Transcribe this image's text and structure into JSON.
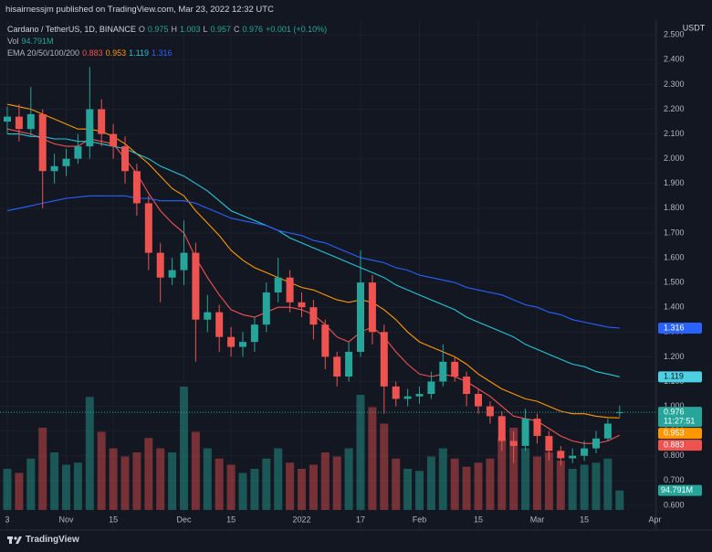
{
  "chart_data": {
    "type": "candlestick",
    "publisher_note": "hisairnessjm published on TradingView.com, Mar 23, 2022 12:32 UTC",
    "title": "Cardano / TetherUS, 1D, BINANCE",
    "ohlc_labels": [
      "O",
      "H",
      "L",
      "C"
    ],
    "change": "+0.001 (+0.10%)",
    "volume_title": "Vol",
    "volume_label": "94.791M",
    "ema_label": "EMA 20/50/100/200",
    "currency": "USDT",
    "countdown": "11:27:51",
    "brand": "TradingView",
    "up_color": "#26a69a",
    "down_color": "#ef5350",
    "grid": true,
    "ylim": [
      0.5,
      2.56
    ],
    "yticks": [
      {
        "value": 0.6,
        "label": "0.600"
      },
      {
        "value": 0.7,
        "label": "0.700"
      },
      {
        "value": 0.8,
        "label": "0.800"
      },
      {
        "value": 0.9,
        "label": "0.900"
      },
      {
        "value": 1.0,
        "label": "1.000"
      },
      {
        "value": 1.1,
        "label": "1.100"
      },
      {
        "value": 1.2,
        "label": "1.200"
      },
      {
        "value": 1.3,
        "label": "1.300"
      },
      {
        "value": 1.4,
        "label": "1.400"
      },
      {
        "value": 1.5,
        "label": "1.500"
      },
      {
        "value": 1.6,
        "label": "1.600"
      },
      {
        "value": 1.7,
        "label": "1.700"
      },
      {
        "value": 1.8,
        "label": "1.800"
      },
      {
        "value": 1.9,
        "label": "1.900"
      },
      {
        "value": 2.0,
        "label": "2.000"
      },
      {
        "value": 2.1,
        "label": "2.100"
      },
      {
        "value": 2.2,
        "label": "2.200"
      },
      {
        "value": 2.3,
        "label": "2.300"
      },
      {
        "value": 2.4,
        "label": "2.400"
      },
      {
        "value": 2.5,
        "label": "2.500"
      }
    ],
    "categories": [
      "3",
      null,
      null,
      null,
      null,
      "Nov",
      null,
      null,
      null,
      "15",
      null,
      null,
      null,
      null,
      null,
      "Dec",
      null,
      null,
      null,
      "15",
      null,
      null,
      null,
      null,
      null,
      "2022",
      null,
      null,
      null,
      null,
      "17",
      null,
      null,
      null,
      null,
      "Feb",
      null,
      null,
      null,
      null,
      "15",
      null,
      null,
      null,
      null,
      "Mar",
      null,
      null,
      null,
      "15",
      null,
      null,
      null,
      null,
      null,
      "Apr"
    ],
    "open": [
      2.15,
      2.17,
      2.12,
      2.18,
      1.95,
      1.97,
      2.0,
      2.05,
      2.2,
      2.1,
      2.05,
      1.95,
      1.82,
      1.62,
      1.52,
      1.55,
      1.62,
      1.35,
      1.38,
      1.28,
      1.24,
      1.26,
      1.33,
      1.46,
      1.52,
      1.42,
      1.4,
      1.33,
      1.2,
      1.12,
      1.22,
      1.5,
      1.3,
      1.08,
      1.03,
      1.04,
      1.05,
      1.1,
      1.18,
      1.12,
      1.05,
      1.0,
      0.96,
      0.86,
      0.84,
      0.95,
      0.88,
      0.82,
      0.79,
      0.8,
      0.83,
      0.87,
      0.975,
      null,
      null,
      null
    ],
    "high": [
      2.21,
      2.22,
      2.29,
      2.2,
      2.02,
      2.04,
      2.1,
      2.37,
      2.24,
      2.14,
      2.09,
      1.98,
      1.85,
      1.66,
      1.6,
      1.75,
      1.66,
      1.45,
      1.41,
      1.32,
      1.3,
      1.36,
      1.5,
      1.6,
      1.55,
      1.46,
      1.43,
      1.35,
      1.22,
      1.26,
      1.63,
      1.53,
      1.33,
      1.1,
      1.07,
      1.08,
      1.14,
      1.25,
      1.2,
      1.14,
      1.07,
      1.02,
      0.98,
      0.9,
      0.99,
      0.97,
      0.9,
      0.84,
      0.83,
      0.86,
      0.9,
      0.95,
      1.003,
      null,
      null,
      null
    ],
    "low": [
      2.1,
      2.07,
      2.09,
      1.8,
      1.9,
      1.93,
      1.98,
      2.0,
      2.05,
      2.0,
      1.9,
      1.77,
      1.55,
      1.42,
      1.49,
      1.49,
      1.18,
      1.3,
      1.22,
      1.2,
      1.2,
      1.22,
      1.3,
      1.42,
      1.38,
      1.36,
      1.27,
      1.15,
      1.08,
      1.1,
      1.2,
      1.25,
      0.97,
      1.0,
      1.0,
      1.01,
      1.03,
      1.08,
      1.1,
      1.0,
      0.97,
      0.93,
      0.82,
      0.77,
      0.82,
      0.85,
      0.78,
      0.76,
      0.77,
      0.78,
      0.81,
      0.86,
      0.957,
      null,
      null,
      null
    ],
    "close": [
      2.17,
      2.12,
      2.18,
      1.95,
      1.97,
      2.0,
      2.05,
      2.2,
      2.1,
      2.05,
      1.95,
      1.82,
      1.62,
      1.52,
      1.55,
      1.62,
      1.35,
      1.38,
      1.28,
      1.24,
      1.26,
      1.33,
      1.46,
      1.52,
      1.42,
      1.4,
      1.33,
      1.2,
      1.12,
      1.22,
      1.5,
      1.3,
      1.08,
      1.03,
      1.04,
      1.05,
      1.1,
      1.18,
      1.12,
      1.05,
      1.0,
      0.96,
      0.86,
      0.84,
      0.95,
      0.88,
      0.82,
      0.79,
      0.8,
      0.83,
      0.87,
      0.93,
      0.976,
      null,
      null,
      null
    ],
    "volume": [
      200,
      180,
      250,
      400,
      280,
      220,
      230,
      550,
      380,
      300,
      260,
      280,
      350,
      300,
      280,
      600,
      380,
      300,
      250,
      220,
      180,
      200,
      250,
      300,
      230,
      200,
      220,
      280,
      260,
      300,
      560,
      500,
      420,
      250,
      200,
      190,
      260,
      300,
      250,
      210,
      230,
      250,
      350,
      400,
      300,
      260,
      280,
      240,
      200,
      220,
      230,
      250,
      94.791,
      null,
      null,
      null
    ],
    "series": [
      {
        "color": "#ef5350",
        "values": [
          2.12,
          2.11,
          2.1,
          2.08,
          2.06,
          2.05,
          2.05,
          2.08,
          2.07,
          2.06,
          2.0,
          1.94,
          1.86,
          1.79,
          1.74,
          1.7,
          1.6,
          1.52,
          1.45,
          1.39,
          1.37,
          1.36,
          1.38,
          1.4,
          1.4,
          1.39,
          1.37,
          1.33,
          1.28,
          1.26,
          1.3,
          1.32,
          1.28,
          1.22,
          1.17,
          1.13,
          1.12,
          1.13,
          1.12,
          1.1,
          1.07,
          1.04,
          1.0,
          0.96,
          0.95,
          0.94,
          0.91,
          0.88,
          0.86,
          0.85,
          0.85,
          0.86,
          0.883,
          null,
          null,
          null
        ]
      },
      {
        "color": "#ff9800",
        "values": [
          2.22,
          2.21,
          2.2,
          2.18,
          2.16,
          2.14,
          2.12,
          2.12,
          2.11,
          2.09,
          2.06,
          2.02,
          1.98,
          1.93,
          1.88,
          1.85,
          1.79,
          1.74,
          1.69,
          1.63,
          1.59,
          1.56,
          1.54,
          1.52,
          1.5,
          1.48,
          1.47,
          1.45,
          1.43,
          1.42,
          1.43,
          1.42,
          1.39,
          1.35,
          1.3,
          1.26,
          1.24,
          1.22,
          1.2,
          1.17,
          1.13,
          1.1,
          1.07,
          1.05,
          1.03,
          1.02,
          1.0,
          0.98,
          0.97,
          0.97,
          0.96,
          0.955,
          0.953,
          null,
          null,
          null
        ]
      },
      {
        "color": "#26c6da",
        "values": [
          2.1,
          2.1,
          2.09,
          2.09,
          2.08,
          2.08,
          2.07,
          2.07,
          2.06,
          2.05,
          2.04,
          2.02,
          2.0,
          1.97,
          1.95,
          1.93,
          1.9,
          1.87,
          1.83,
          1.79,
          1.77,
          1.75,
          1.73,
          1.71,
          1.68,
          1.66,
          1.64,
          1.62,
          1.6,
          1.58,
          1.56,
          1.54,
          1.52,
          1.49,
          1.47,
          1.45,
          1.43,
          1.41,
          1.39,
          1.36,
          1.34,
          1.32,
          1.3,
          1.28,
          1.25,
          1.23,
          1.21,
          1.19,
          1.17,
          1.16,
          1.14,
          1.13,
          1.119,
          null,
          null,
          null
        ]
      },
      {
        "color": "#2962ff",
        "values": [
          1.79,
          1.8,
          1.81,
          1.82,
          1.83,
          1.84,
          1.845,
          1.85,
          1.85,
          1.85,
          1.85,
          1.84,
          1.84,
          1.83,
          1.83,
          1.83,
          1.82,
          1.8,
          1.78,
          1.76,
          1.75,
          1.74,
          1.73,
          1.71,
          1.7,
          1.69,
          1.67,
          1.66,
          1.64,
          1.62,
          1.6,
          1.59,
          1.58,
          1.56,
          1.55,
          1.53,
          1.52,
          1.51,
          1.5,
          1.48,
          1.47,
          1.46,
          1.45,
          1.43,
          1.41,
          1.4,
          1.38,
          1.37,
          1.35,
          1.34,
          1.33,
          1.32,
          1.316,
          null,
          null,
          null
        ]
      }
    ]
  }
}
